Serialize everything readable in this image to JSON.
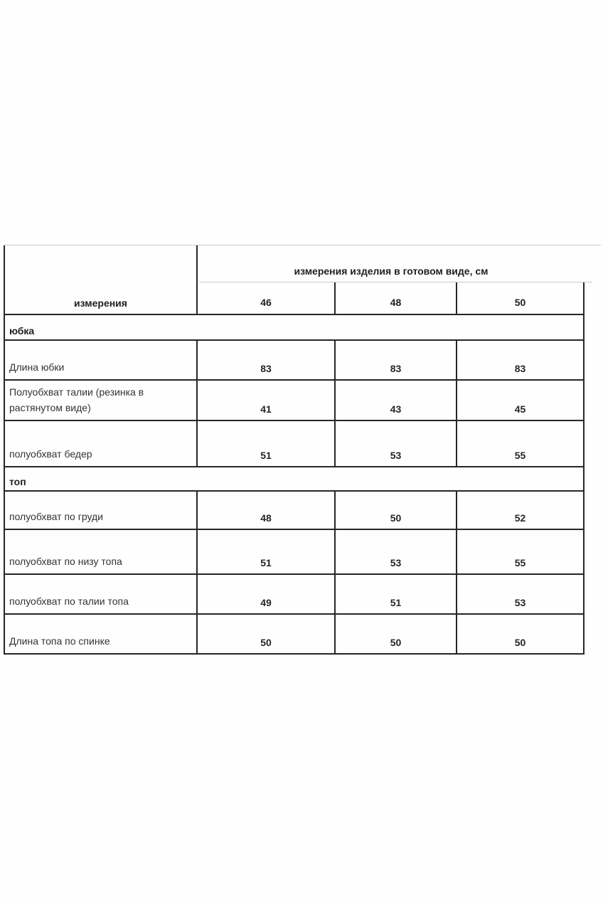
{
  "header": {
    "measurements_col_label": "измерения",
    "span_label": "измерения изделия в готовом виде, см",
    "sizes": [
      "46",
      "48",
      "50"
    ]
  },
  "sections": [
    {
      "title": "юбка",
      "rows": [
        {
          "label": "Длина юбки",
          "values": [
            "83",
            "83",
            "83"
          ]
        },
        {
          "label": "Полуобхват талии (резинка в растянутом виде)",
          "values": [
            "41",
            "43",
            "45"
          ]
        },
        {
          "label": "полуобхват бедер",
          "values": [
            "51",
            "53",
            "55"
          ]
        }
      ]
    },
    {
      "title": "топ",
      "rows": [
        {
          "label": "полуобхват по груди",
          "values": [
            "48",
            "50",
            "52"
          ]
        },
        {
          "label": "полуобхват по низу топа",
          "values": [
            "51",
            "53",
            "55"
          ]
        },
        {
          "label": "полуобхват по талии топа",
          "values": [
            "49",
            "51",
            "53"
          ]
        },
        {
          "label": "Длина топа по спинке",
          "values": [
            "50",
            "50",
            "50"
          ]
        }
      ]
    }
  ],
  "colors": {
    "border_dark": "#262626",
    "border_light": "#c9c9c9",
    "text": "#2d2d2d",
    "background": "#fefefe"
  }
}
